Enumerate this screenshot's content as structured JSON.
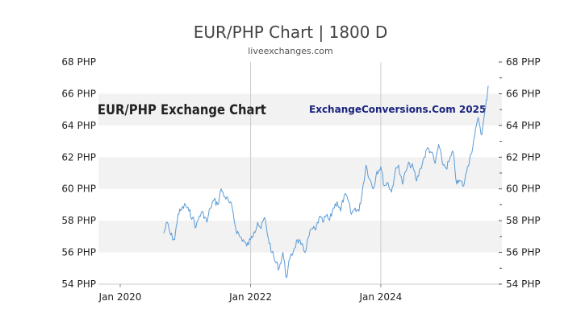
{
  "chart_data": {
    "type": "line",
    "title": "EUR/PHP Chart | 1800 D",
    "subtitle": "liveexchanges.com",
    "watermark_left": "EUR/PHP Exchange Chart",
    "watermark_right": "ExchangeConversions.Com 2025",
    "xlabel": "",
    "ylabel": "",
    "x_ticks": [
      "Jan 2020",
      "Jan 2022",
      "Jan 2024"
    ],
    "y_ticks": [
      "54 PHP",
      "56 PHP",
      "58 PHP",
      "60 PHP",
      "62 PHP",
      "64 PHP",
      "66 PHP",
      "68 PHP"
    ],
    "ylim": [
      54,
      68
    ],
    "xlim": [
      "2019-09-01",
      "2025-11-10"
    ],
    "grid": "alternating horizontal bands, vertical lines at Jan 2022 and Jan 2024",
    "colors": {
      "line": "#5b9bd5",
      "band": "#f2f2f2",
      "axis": "#cccccc",
      "title": "#444444"
    },
    "series": [
      {
        "x": [
          "2020-09-01",
          "2020-09-20",
          "2020-10-10",
          "2020-11-01",
          "2020-11-20",
          "2020-12-10",
          "2021-01-01",
          "2021-01-20",
          "2021-02-10",
          "2021-03-01",
          "2021-03-20",
          "2021-04-10",
          "2021-05-01",
          "2021-05-20",
          "2021-06-10",
          "2021-07-01",
          "2021-07-20",
          "2021-08-10",
          "2021-09-01",
          "2021-09-20",
          "2021-10-10",
          "2021-11-01",
          "2021-11-20",
          "2021-12-10",
          "2022-01-01",
          "2022-01-20",
          "2022-02-10",
          "2022-03-01",
          "2022-03-20",
          "2022-04-10",
          "2022-05-01",
          "2022-05-20",
          "2022-06-10",
          "2022-07-01",
          "2022-07-20",
          "2022-08-10",
          "2022-09-01",
          "2022-09-20",
          "2022-10-10",
          "2022-11-01",
          "2022-11-20",
          "2022-12-10",
          "2023-01-01",
          "2023-01-20",
          "2023-02-10",
          "2023-03-01",
          "2023-03-20",
          "2023-04-10",
          "2023-05-01",
          "2023-05-20",
          "2023-06-10",
          "2023-07-01",
          "2023-07-20",
          "2023-08-10",
          "2023-09-01",
          "2023-09-20",
          "2023-10-10",
          "2023-11-01",
          "2023-11-20",
          "2023-12-10",
          "2024-01-01",
          "2024-01-20",
          "2024-02-10",
          "2024-03-01",
          "2024-03-20",
          "2024-04-10",
          "2024-05-01",
          "2024-05-20",
          "2024-06-10",
          "2024-07-01",
          "2024-07-20",
          "2024-08-10",
          "2024-09-01",
          "2024-09-20",
          "2024-10-10",
          "2024-11-01",
          "2024-11-20",
          "2024-12-10",
          "2025-01-01",
          "2025-01-20",
          "2025-02-10",
          "2025-03-01",
          "2025-03-20",
          "2025-04-10",
          "2025-05-01",
          "2025-05-20",
          "2025-06-10",
          "2025-07-01",
          "2025-07-20",
          "2025-08-10",
          "2025-08-25"
        ],
        "values": [
          57.2,
          57.9,
          57.1,
          56.8,
          58.4,
          58.7,
          59.0,
          58.6,
          58.2,
          57.6,
          58.3,
          58.5,
          57.9,
          58.8,
          59.3,
          59.0,
          60.0,
          59.5,
          59.2,
          58.8,
          57.5,
          57.0,
          56.8,
          56.4,
          56.8,
          57.3,
          57.9,
          57.5,
          58.2,
          56.9,
          56.0,
          55.4,
          55.0,
          56.0,
          54.4,
          55.6,
          56.2,
          56.8,
          56.5,
          56.0,
          56.9,
          57.5,
          57.4,
          58.2,
          57.9,
          58.3,
          58.0,
          58.8,
          59.2,
          58.6,
          59.6,
          59.3,
          58.4,
          58.8,
          58.6,
          59.9,
          61.5,
          60.6,
          60.0,
          61.1,
          61.4,
          60.2,
          60.4,
          59.8,
          61.0,
          61.5,
          60.3,
          61.1,
          61.6,
          61.3,
          60.5,
          61.3,
          62.0,
          62.6,
          62.3,
          61.6,
          62.8,
          61.7,
          61.3,
          61.8,
          62.3,
          60.3,
          60.5,
          60.2,
          61.4,
          62.2,
          63.3,
          64.5,
          63.4,
          65.1,
          66.5
        ]
      }
    ]
  }
}
